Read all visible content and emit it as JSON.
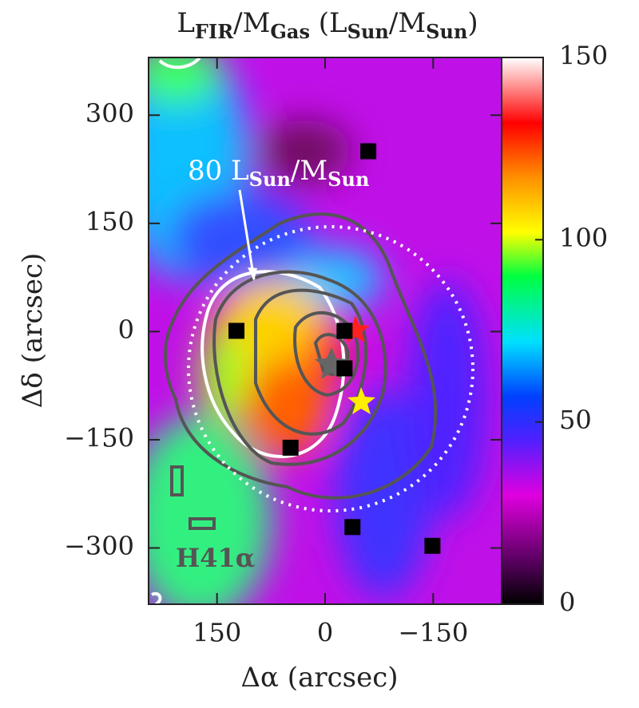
{
  "chart_data": {
    "type": "heatmap",
    "title_parts": [
      "L",
      "FIR",
      "/M",
      "Gas",
      " (L",
      "Sun",
      "/M",
      "Sun",
      ")"
    ],
    "x_label": "Δα (arcsec)",
    "y_label": "Δδ (arcsec)",
    "xlim": [
      245,
      -245
    ],
    "ylim": [
      -378,
      380
    ],
    "xticks": [
      150,
      0,
      {
        "value": -150,
        "label": "−150"
      }
    ],
    "yticks": [
      {
        "value": -300,
        "label": "−300"
      },
      {
        "value": -150,
        "label": "−150"
      },
      0,
      150,
      300
    ],
    "colorbar": {
      "lim": [
        0,
        150
      ],
      "ticks": [
        0,
        50,
        100,
        150
      ]
    },
    "annotation_parts": [
      "80 L",
      "Sun",
      "/M",
      "Sun"
    ],
    "line_label": "H41α",
    "sources": {
      "x": [
        123,
        -60,
        -27,
        -27,
        48,
        -38,
        -149
      ],
      "y": [
        1,
        250,
        1,
        -51,
        -161,
        -271,
        -297
      ]
    }
  }
}
